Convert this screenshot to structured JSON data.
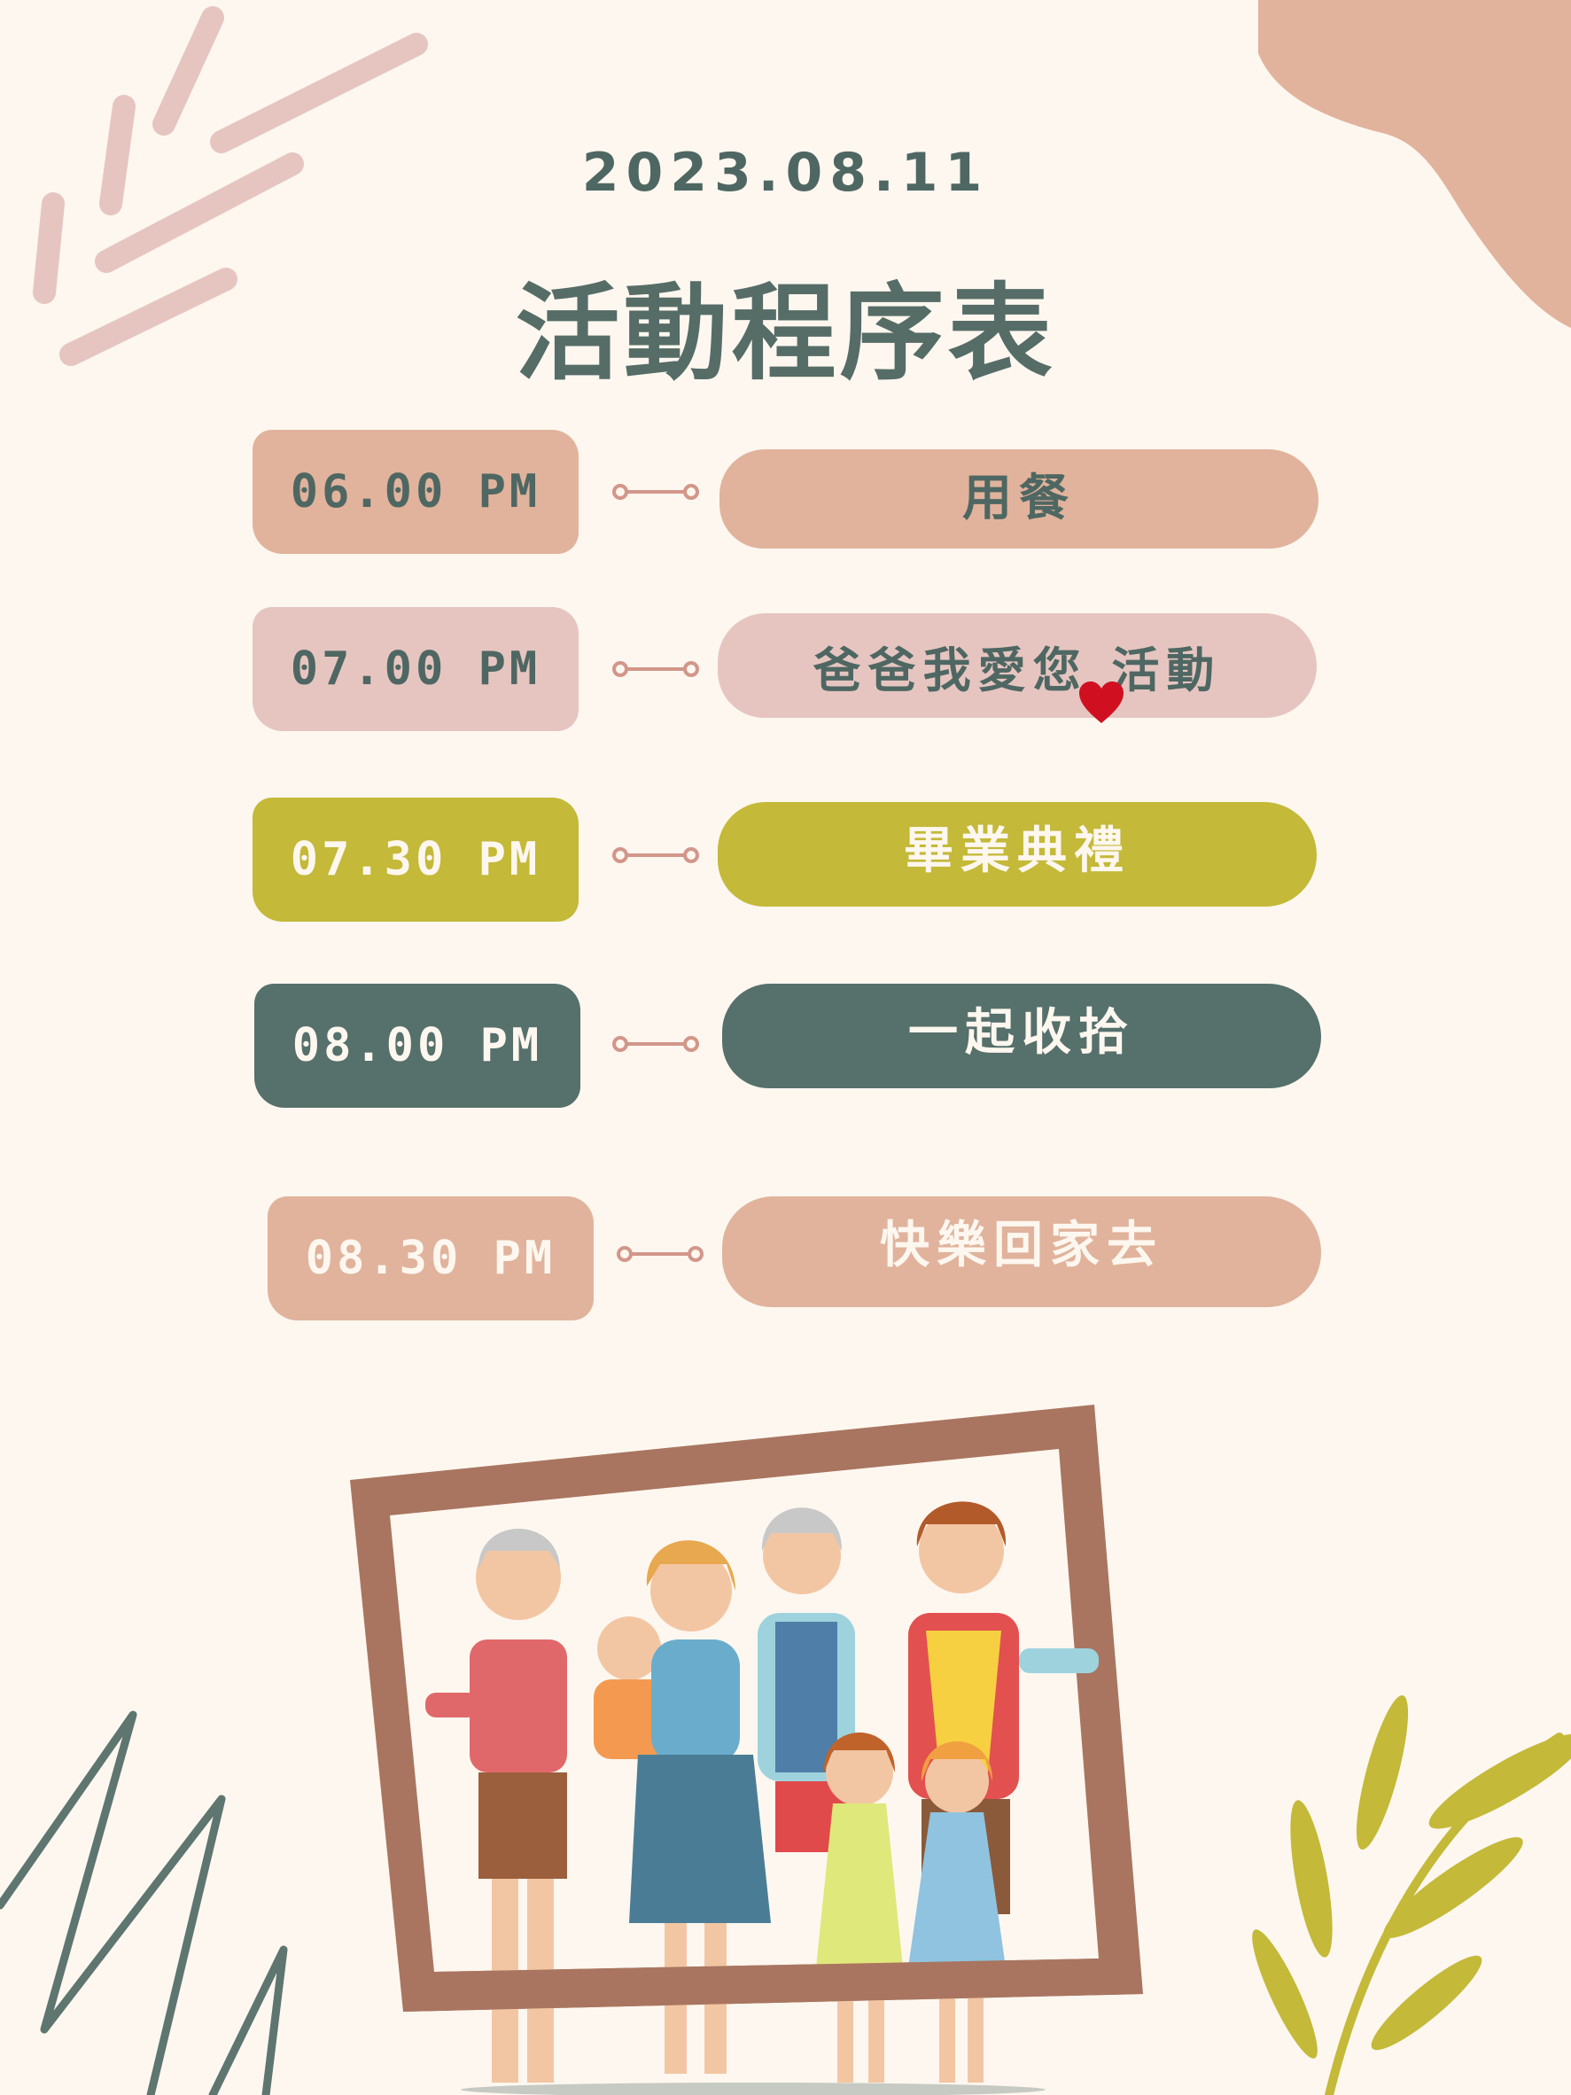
{
  "date": "2023.08.11",
  "title": "活動程序表",
  "colors": {
    "background": "#fdf7ef",
    "peach": "#e1b39c",
    "pink": "#e6c5c1",
    "olive": "#c4b938",
    "slate": "#56706b",
    "text": "#4f6762",
    "heart": "#d01020"
  },
  "schedule": [
    {
      "time": "06.00  PM",
      "event": "用餐",
      "color": "peach"
    },
    {
      "time": "07.00  PM",
      "event": "爸爸我愛您  活動",
      "color": "pink"
    },
    {
      "time": "07.30  PM",
      "event": "畢業典禮",
      "color": "olive"
    },
    {
      "time": "08.00  PM",
      "event": "一起收拾",
      "color": "slate"
    },
    {
      "time": "08.30  PM",
      "event": "快樂回家去",
      "color": "peach"
    }
  ],
  "icons": [
    "connector-icon",
    "heart-icon",
    "leaf-icon",
    "picture-frame-icon"
  ]
}
